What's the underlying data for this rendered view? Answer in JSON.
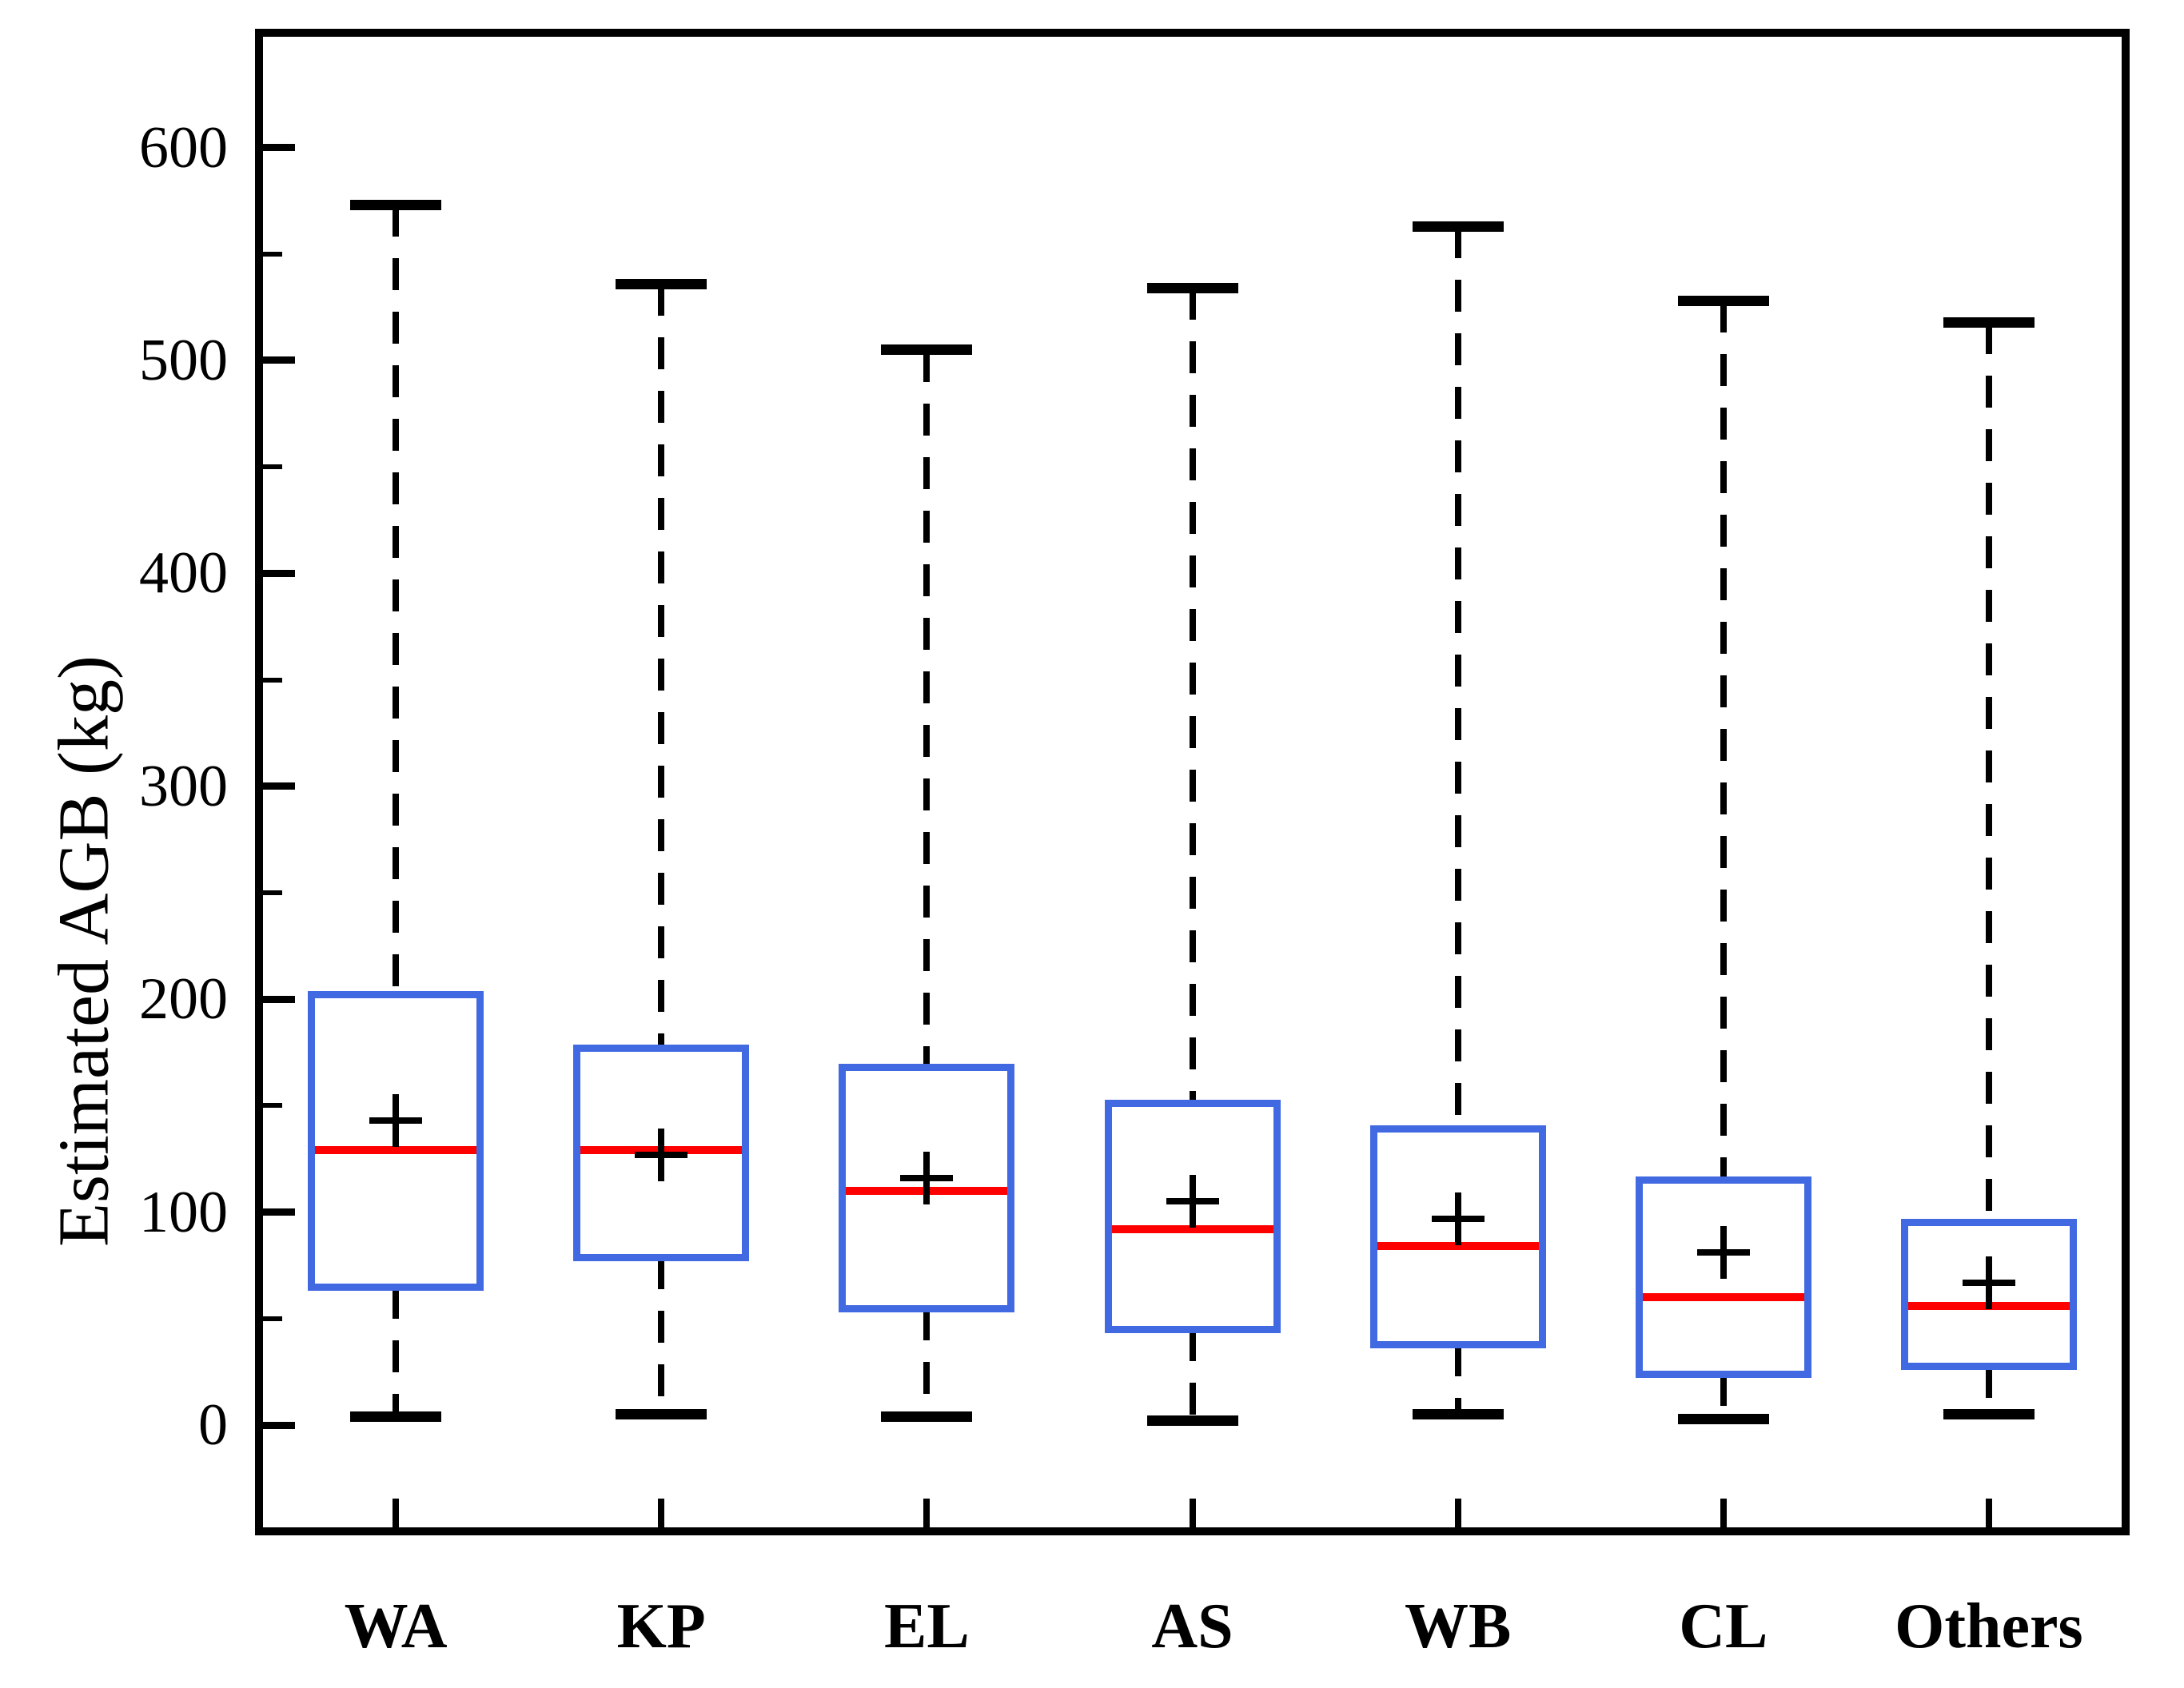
{
  "chart_data": {
    "type": "box",
    "title": "",
    "xlabel": "",
    "ylabel": "Estimated AGB (kg)",
    "categories": [
      "WA",
      "KP",
      "EL",
      "AS",
      "WB",
      "CL",
      "Others"
    ],
    "series": [
      {
        "name": "WA",
        "whisker_low": 4,
        "q1": 65,
        "median": 129,
        "mean": 143,
        "q3": 202,
        "whisker_high": 573
      },
      {
        "name": "KP",
        "whisker_low": 5,
        "q1": 79,
        "median": 129,
        "mean": 127,
        "q3": 177,
        "whisker_high": 536
      },
      {
        "name": "EL",
        "whisker_low": 4,
        "q1": 55,
        "median": 110,
        "mean": 116,
        "q3": 168,
        "whisker_high": 505
      },
      {
        "name": "AS",
        "whisker_low": 2,
        "q1": 45,
        "median": 92,
        "mean": 105,
        "q3": 151,
        "whisker_high": 534
      },
      {
        "name": "WB",
        "whisker_low": 5,
        "q1": 38,
        "median": 84,
        "mean": 97,
        "q3": 139,
        "whisker_high": 563
      },
      {
        "name": "CL",
        "whisker_low": 3,
        "q1": 24,
        "median": 60,
        "mean": 81,
        "q3": 115,
        "whisker_high": 528
      },
      {
        "name": "Others",
        "whisker_low": 5,
        "q1": 28,
        "median": 56,
        "mean": 67,
        "q3": 95,
        "whisker_high": 518
      }
    ],
    "ylim": [
      -48,
      652
    ],
    "yticks_major": [
      0,
      100,
      200,
      300,
      400,
      500,
      600
    ],
    "yticks_minor": [
      50,
      150,
      250,
      350,
      450,
      550
    ],
    "grid": false,
    "legend": "none",
    "colors": {
      "box_edge": "#4169E1",
      "median": "#FF0000",
      "whisker": "#000000",
      "mean_marker": "#000000",
      "frame": "#000000",
      "background": "#ffffff"
    }
  }
}
